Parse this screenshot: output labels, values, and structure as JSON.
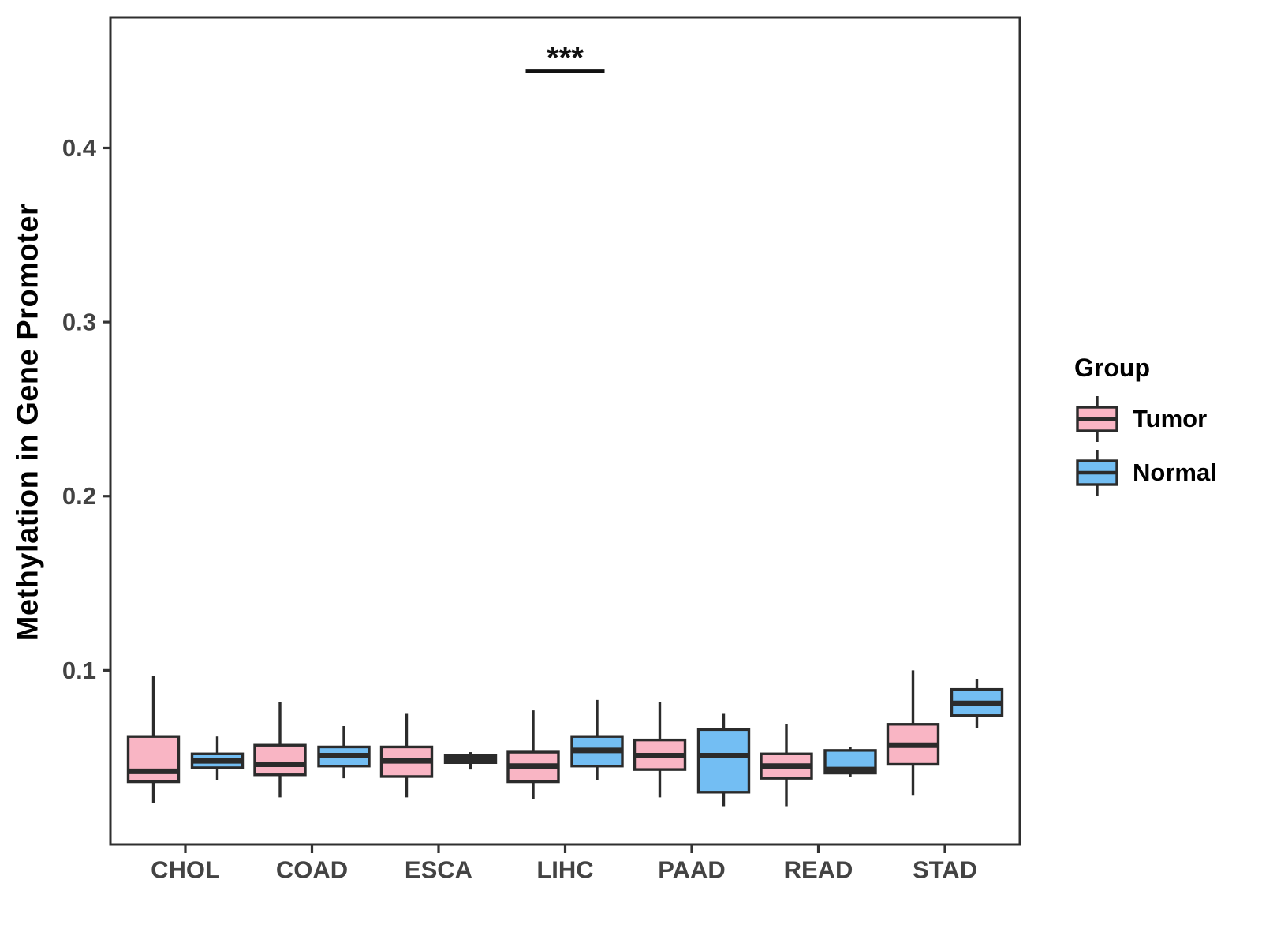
{
  "figure": {
    "ylabel": "Methylation in Gene Promoter",
    "legend": {
      "title": "Group",
      "items": [
        {
          "label": "Tumor",
          "color": "#F9B5C4"
        },
        {
          "label": "Normal",
          "color": "#73BEF3"
        }
      ]
    }
  },
  "chart_data": {
    "type": "grouped_boxplot",
    "title": "",
    "xlabel": "",
    "ylabel": "Methylation in Gene Promoter",
    "categories": [
      "CHOL",
      "COAD",
      "ESCA",
      "LIHC",
      "PAAD",
      "READ",
      "STAD"
    ],
    "groups": [
      "Tumor",
      "Normal"
    ],
    "ylim": [
      0,
      0.475
    ],
    "yticks": [
      0.1,
      0.2,
      0.3,
      0.4
    ],
    "ytick_labels": [
      "0.1",
      "0.2",
      "0.3",
      "0.4"
    ],
    "grid": false,
    "legend_position": "right",
    "annotation": {
      "label": "***",
      "category": "LIHC",
      "line_y": 0.444
    },
    "style": {
      "box_border": "#2B2B2B",
      "panel_border": "#2F2F2F",
      "axis_color": "#333333",
      "axis_text_color": "#434343",
      "annotation_color": "#111111",
      "background": "#FFFFFF"
    },
    "series": [
      {
        "name": "Tumor",
        "color": "#F9B5C4",
        "boxes": [
          {
            "category": "CHOL",
            "whislo": 0.024,
            "q1": 0.036,
            "med": 0.042,
            "q3": 0.062,
            "whishi": 0.097
          },
          {
            "category": "COAD",
            "whislo": 0.027,
            "q1": 0.04,
            "med": 0.046,
            "q3": 0.057,
            "whishi": 0.082
          },
          {
            "category": "ESCA",
            "whislo": 0.027,
            "q1": 0.039,
            "med": 0.048,
            "q3": 0.056,
            "whishi": 0.075
          },
          {
            "category": "LIHC",
            "whislo": 0.026,
            "q1": 0.036,
            "med": 0.045,
            "q3": 0.053,
            "whishi": 0.077
          },
          {
            "category": "PAAD",
            "whislo": 0.027,
            "q1": 0.043,
            "med": 0.051,
            "q3": 0.06,
            "whishi": 0.082
          },
          {
            "category": "READ",
            "whislo": 0.022,
            "q1": 0.038,
            "med": 0.045,
            "q3": 0.052,
            "whishi": 0.069
          },
          {
            "category": "STAD",
            "whislo": 0.028,
            "q1": 0.046,
            "med": 0.057,
            "q3": 0.069,
            "whishi": 0.1
          }
        ]
      },
      {
        "name": "Normal",
        "color": "#73BEF3",
        "boxes": [
          {
            "category": "CHOL",
            "whislo": 0.037,
            "q1": 0.044,
            "med": 0.048,
            "q3": 0.052,
            "whishi": 0.062
          },
          {
            "category": "COAD",
            "whislo": 0.038,
            "q1": 0.045,
            "med": 0.051,
            "q3": 0.056,
            "whishi": 0.068
          },
          {
            "category": "ESCA",
            "whislo": 0.043,
            "q1": 0.047,
            "med": 0.049,
            "q3": 0.051,
            "whishi": 0.053
          },
          {
            "category": "LIHC",
            "whislo": 0.037,
            "q1": 0.045,
            "med": 0.054,
            "q3": 0.062,
            "whishi": 0.083
          },
          {
            "category": "PAAD",
            "whislo": 0.022,
            "q1": 0.03,
            "med": 0.051,
            "q3": 0.066,
            "whishi": 0.075
          },
          {
            "category": "READ",
            "whislo": 0.039,
            "q1": 0.041,
            "med": 0.043,
            "q3": 0.054,
            "whishi": 0.056
          },
          {
            "category": "STAD",
            "whislo": 0.067,
            "q1": 0.074,
            "med": 0.081,
            "q3": 0.089,
            "whishi": 0.095
          }
        ]
      }
    ]
  }
}
